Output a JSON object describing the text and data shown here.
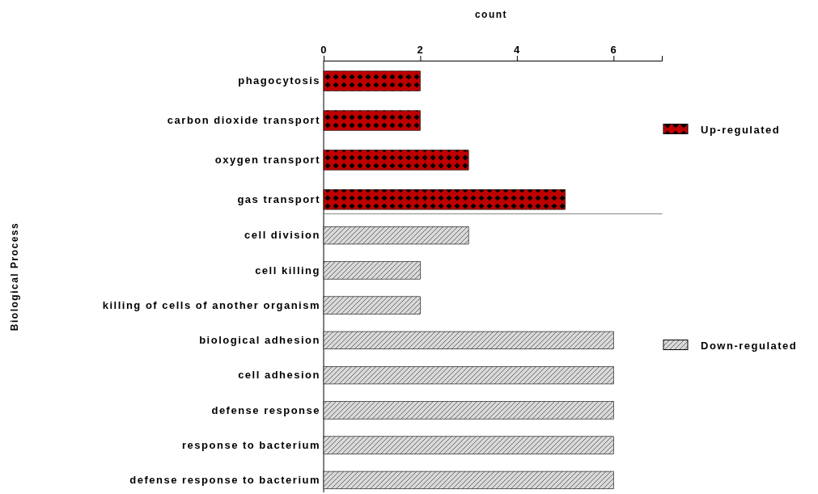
{
  "chart_data": [
    {
      "type": "bar",
      "orientation": "horizontal",
      "xlabel": "count",
      "categories": [
        "phagocytosis",
        "carbon dioxide transport",
        "oxygen transport",
        "gas transport"
      ],
      "series": [
        {
          "name": "Up-regulated",
          "color": "#c00000",
          "values": [
            2,
            2,
            3,
            5
          ]
        }
      ],
      "xlim": [
        0,
        7
      ],
      "xticks": [
        0,
        2,
        4,
        6
      ],
      "legend": "right"
    },
    {
      "type": "bar",
      "orientation": "horizontal",
      "ylabel": "Biological Process",
      "categories": [
        "cell division",
        "cell killing",
        "killing of cells of another organism",
        "biological adhesion",
        "cell adhesion",
        "defense response",
        "response to bacterium",
        "defense response to bacterium"
      ],
      "series": [
        {
          "name": "Down-regulated",
          "color": "#d9d9d9",
          "values": [
            3,
            2,
            2,
            6,
            6,
            6,
            6,
            6
          ]
        }
      ],
      "xlim": [
        0,
        7
      ],
      "tick_labels": "y",
      "legend": "right"
    }
  ]
}
